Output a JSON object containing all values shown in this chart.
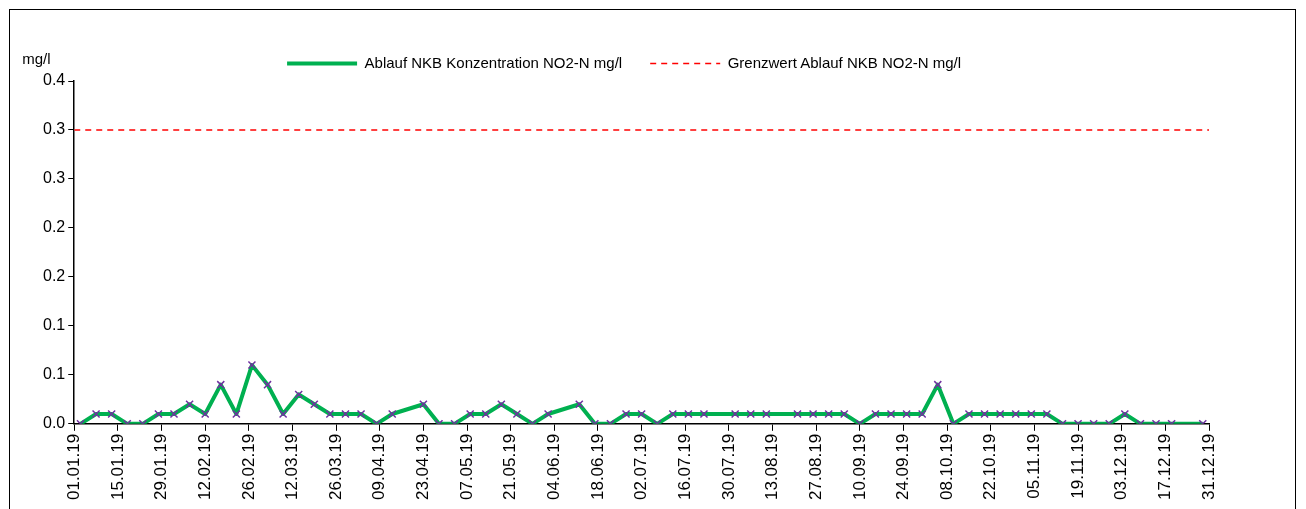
{
  "chart_data": {
    "type": "line",
    "ylabel": "mg/l",
    "x": [
      "--01-03",
      "--01-08",
      "--01-13",
      "--01-18",
      "--01-23",
      "--01-28",
      "--02-02",
      "--02-07",
      "--02-12",
      "--02-17",
      "--02-22",
      "--02-27",
      "--03-04",
      "--03-09",
      "--03-14",
      "--03-19",
      "--03-24",
      "--03-29",
      "--04-03",
      "--04-08",
      "--04-13",
      "--04-23",
      "--04-28",
      "--05-03",
      "--05-08",
      "--05-13",
      "--05-18",
      "--05-23",
      "--05-28",
      "--06-02",
      "--06-12",
      "--06-17",
      "--06-22",
      "--06-27",
      "--07-02",
      "--07-07",
      "--07-12",
      "--07-17",
      "--07-22",
      "--08-01",
      "--08-06",
      "--08-11",
      "--08-21",
      "--08-26",
      "--08-31",
      "--09-05",
      "--09-10",
      "--09-15",
      "--09-20",
      "--09-25",
      "--09-30",
      "--10-05",
      "--10-10",
      "--10-15",
      "--10-20",
      "--10-25",
      "--10-30",
      "--11-04",
      "--11-09",
      "--11-14",
      "--11-19",
      "--11-24",
      "--11-29",
      "--12-04",
      "--12-09",
      "--12-14",
      "--12-19",
      "--12-29"
    ],
    "series": [
      {
        "name": "Ablauf NKB Konzentration NO2-N mg/l",
        "color": "#00b050",
        "values": [
          0,
          0.01,
          0.01,
          0,
          0,
          0.01,
          0.01,
          0.02,
          0.01,
          0.04,
          0.01,
          0.06,
          0.04,
          0.01,
          0.03,
          0.02,
          0.01,
          0.01,
          0.01,
          0,
          0.01,
          0.02,
          0,
          0,
          0.01,
          0.01,
          0.02,
          0.01,
          0,
          0.01,
          0.02,
          0,
          0,
          0.01,
          0.01,
          0,
          0.01,
          0.01,
          0.01,
          0.01,
          0.01,
          0.01,
          0.01,
          0.01,
          0.01,
          0.01,
          0,
          0.01,
          0.01,
          0.01,
          0.01,
          0.04,
          0,
          0.01,
          0.01,
          0.01,
          0.01,
          0.01,
          0.01,
          0,
          0,
          0,
          0,
          0.01,
          0,
          0,
          0,
          0
        ]
      }
    ],
    "marker": "cross",
    "legend": "top",
    "grid": false,
    "ref_lines": [
      {
        "axis": "y",
        "value": 0.3,
        "label": "Grenzwert Ablauf NKB NO2-N mg/l",
        "color": "#ff0000",
        "line_style": "dashed"
      }
    ],
    "xlim": [
      "--01-01",
      "--12-31"
    ],
    "xticks": [
      {
        "value": "--01-01",
        "label": "01.01.19"
      },
      {
        "value": "--01-15",
        "label": "15.01.19"
      },
      {
        "value": "--01-29",
        "label": "29.01.19"
      },
      {
        "value": "--02-12",
        "label": "12.02.19"
      },
      {
        "value": "--02-26",
        "label": "26.02.19"
      },
      {
        "value": "--03-12",
        "label": "12.03.19"
      },
      {
        "value": "--03-26",
        "label": "26.03.19"
      },
      {
        "value": "--04-09",
        "label": "09.04.19"
      },
      {
        "value": "--04-23",
        "label": "23.04.19"
      },
      {
        "value": "--05-07",
        "label": "07.05.19"
      },
      {
        "value": "--05-21",
        "label": "21.05.19"
      },
      {
        "value": "--06-04",
        "label": "04.06.19"
      },
      {
        "value": "--06-18",
        "label": "18.06.19"
      },
      {
        "value": "--07-02",
        "label": "02.07.19"
      },
      {
        "value": "--07-16",
        "label": "16.07.19"
      },
      {
        "value": "--07-30",
        "label": "30.07.19"
      },
      {
        "value": "--08-13",
        "label": "13.08.19"
      },
      {
        "value": "--08-27",
        "label": "27.08.19"
      },
      {
        "value": "--09-10",
        "label": "10.09.19"
      },
      {
        "value": "--09-24",
        "label": "24.09.19"
      },
      {
        "value": "--10-08",
        "label": "08.10.19"
      },
      {
        "value": "--10-22",
        "label": "22.10.19"
      },
      {
        "value": "--11-05",
        "label": "05.11.19"
      },
      {
        "value": "--11-19",
        "label": "19.11.19"
      },
      {
        "value": "--12-03",
        "label": "03.12.19"
      },
      {
        "value": "--12-17",
        "label": "17.12.19"
      },
      {
        "value": "--12-31",
        "label": "31.12.19"
      }
    ],
    "ylim": [
      0,
      0.35
    ],
    "yticks": [
      {
        "value": 0,
        "label": "0.0"
      },
      {
        "value": 0.05,
        "label": "0.1"
      },
      {
        "value": 0.1,
        "label": "0.1"
      },
      {
        "value": 0.15,
        "label": "0.2"
      },
      {
        "value": 0.2,
        "label": "0.2"
      },
      {
        "value": 0.25,
        "label": "0.3"
      },
      {
        "value": 0.3,
        "label": "0.3"
      },
      {
        "value": 0.35,
        "label": "0.4"
      }
    ]
  }
}
